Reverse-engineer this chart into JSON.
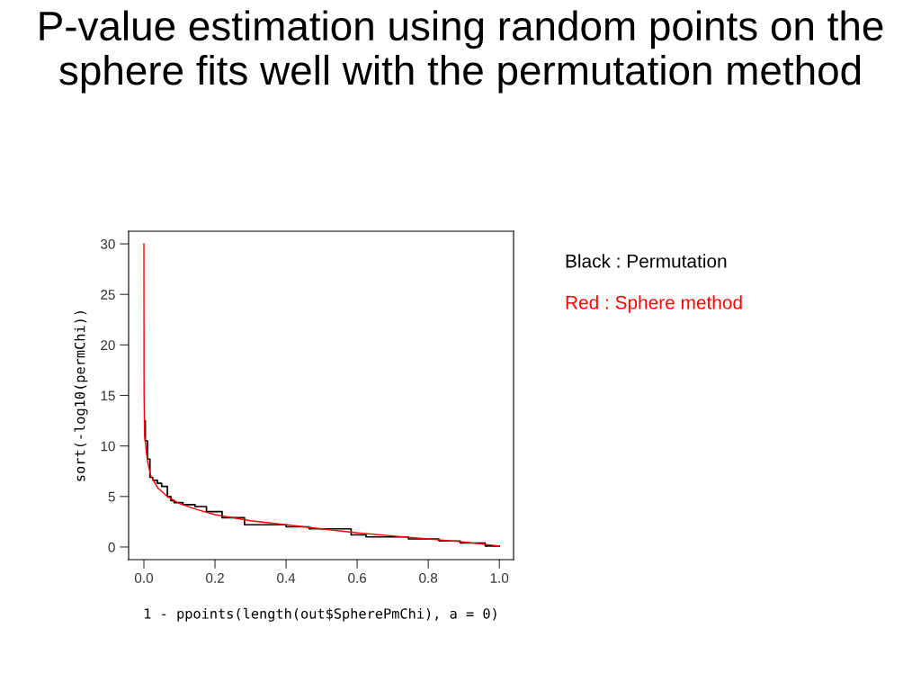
{
  "chart_data": {
    "type": "line",
    "title": "P-value estimation using random points on the sphere fits well with the permutation method",
    "xlabel": "1 - ppoints(length(out$SpherePmChi), a = 0)",
    "ylabel": "sort(-log10(permChi))",
    "xlim": [
      -0.043,
      1.04
    ],
    "ylim": [
      -1.25,
      31.25
    ],
    "xticks": [
      {
        "value": 0,
        "label": "0.0"
      },
      {
        "value": 0.2,
        "label": "0.2"
      },
      {
        "value": 0.4,
        "label": "0.4"
      },
      {
        "value": 0.6,
        "label": "0.6"
      },
      {
        "value": 0.8,
        "label": "0.8"
      },
      {
        "value": 1,
        "label": "1.0"
      }
    ],
    "yticks": [
      0,
      5,
      10,
      15,
      20,
      25,
      30
    ],
    "grid": false,
    "legend": false,
    "line_style": "solid",
    "marker": "none",
    "series": [
      {
        "name": "Black : Permutation",
        "type": "step",
        "color": "#000000",
        "x": [
          0.002,
          0.004,
          0.01,
          0.017,
          0.025,
          0.038,
          0.05,
          0.066,
          0.076,
          0.085,
          0.11,
          0.144,
          0.176,
          0.22,
          0.283,
          0.4,
          0.465,
          0.583,
          0.625,
          0.744,
          0.83,
          0.89,
          0.96,
          1.0
        ],
        "values": [
          12.5,
          10.5,
          8.7,
          6.9,
          6.6,
          6.3,
          6.0,
          5.0,
          4.6,
          4.4,
          4.2,
          4.0,
          3.5,
          2.9,
          2.2,
          2.0,
          1.8,
          1.2,
          1.0,
          0.8,
          0.6,
          0.4,
          0.1,
          0.1
        ]
      },
      {
        "name": "Red : Sphere method",
        "color": "#ff0000",
        "x": [
          0,
          0.0005,
          0.002,
          0.01,
          0.02,
          0.04,
          0.066,
          0.1,
          0.15,
          0.2,
          0.3,
          0.4,
          0.5,
          0.6,
          0.7,
          0.8,
          0.9,
          1.0
        ],
        "values": [
          30,
          15,
          11,
          8.5,
          7,
          5.8,
          5.0,
          4.3,
          3.7,
          3.2,
          2.6,
          2.2,
          1.8,
          1.4,
          1.1,
          0.8,
          0.5,
          0.1
        ]
      }
    ]
  }
}
